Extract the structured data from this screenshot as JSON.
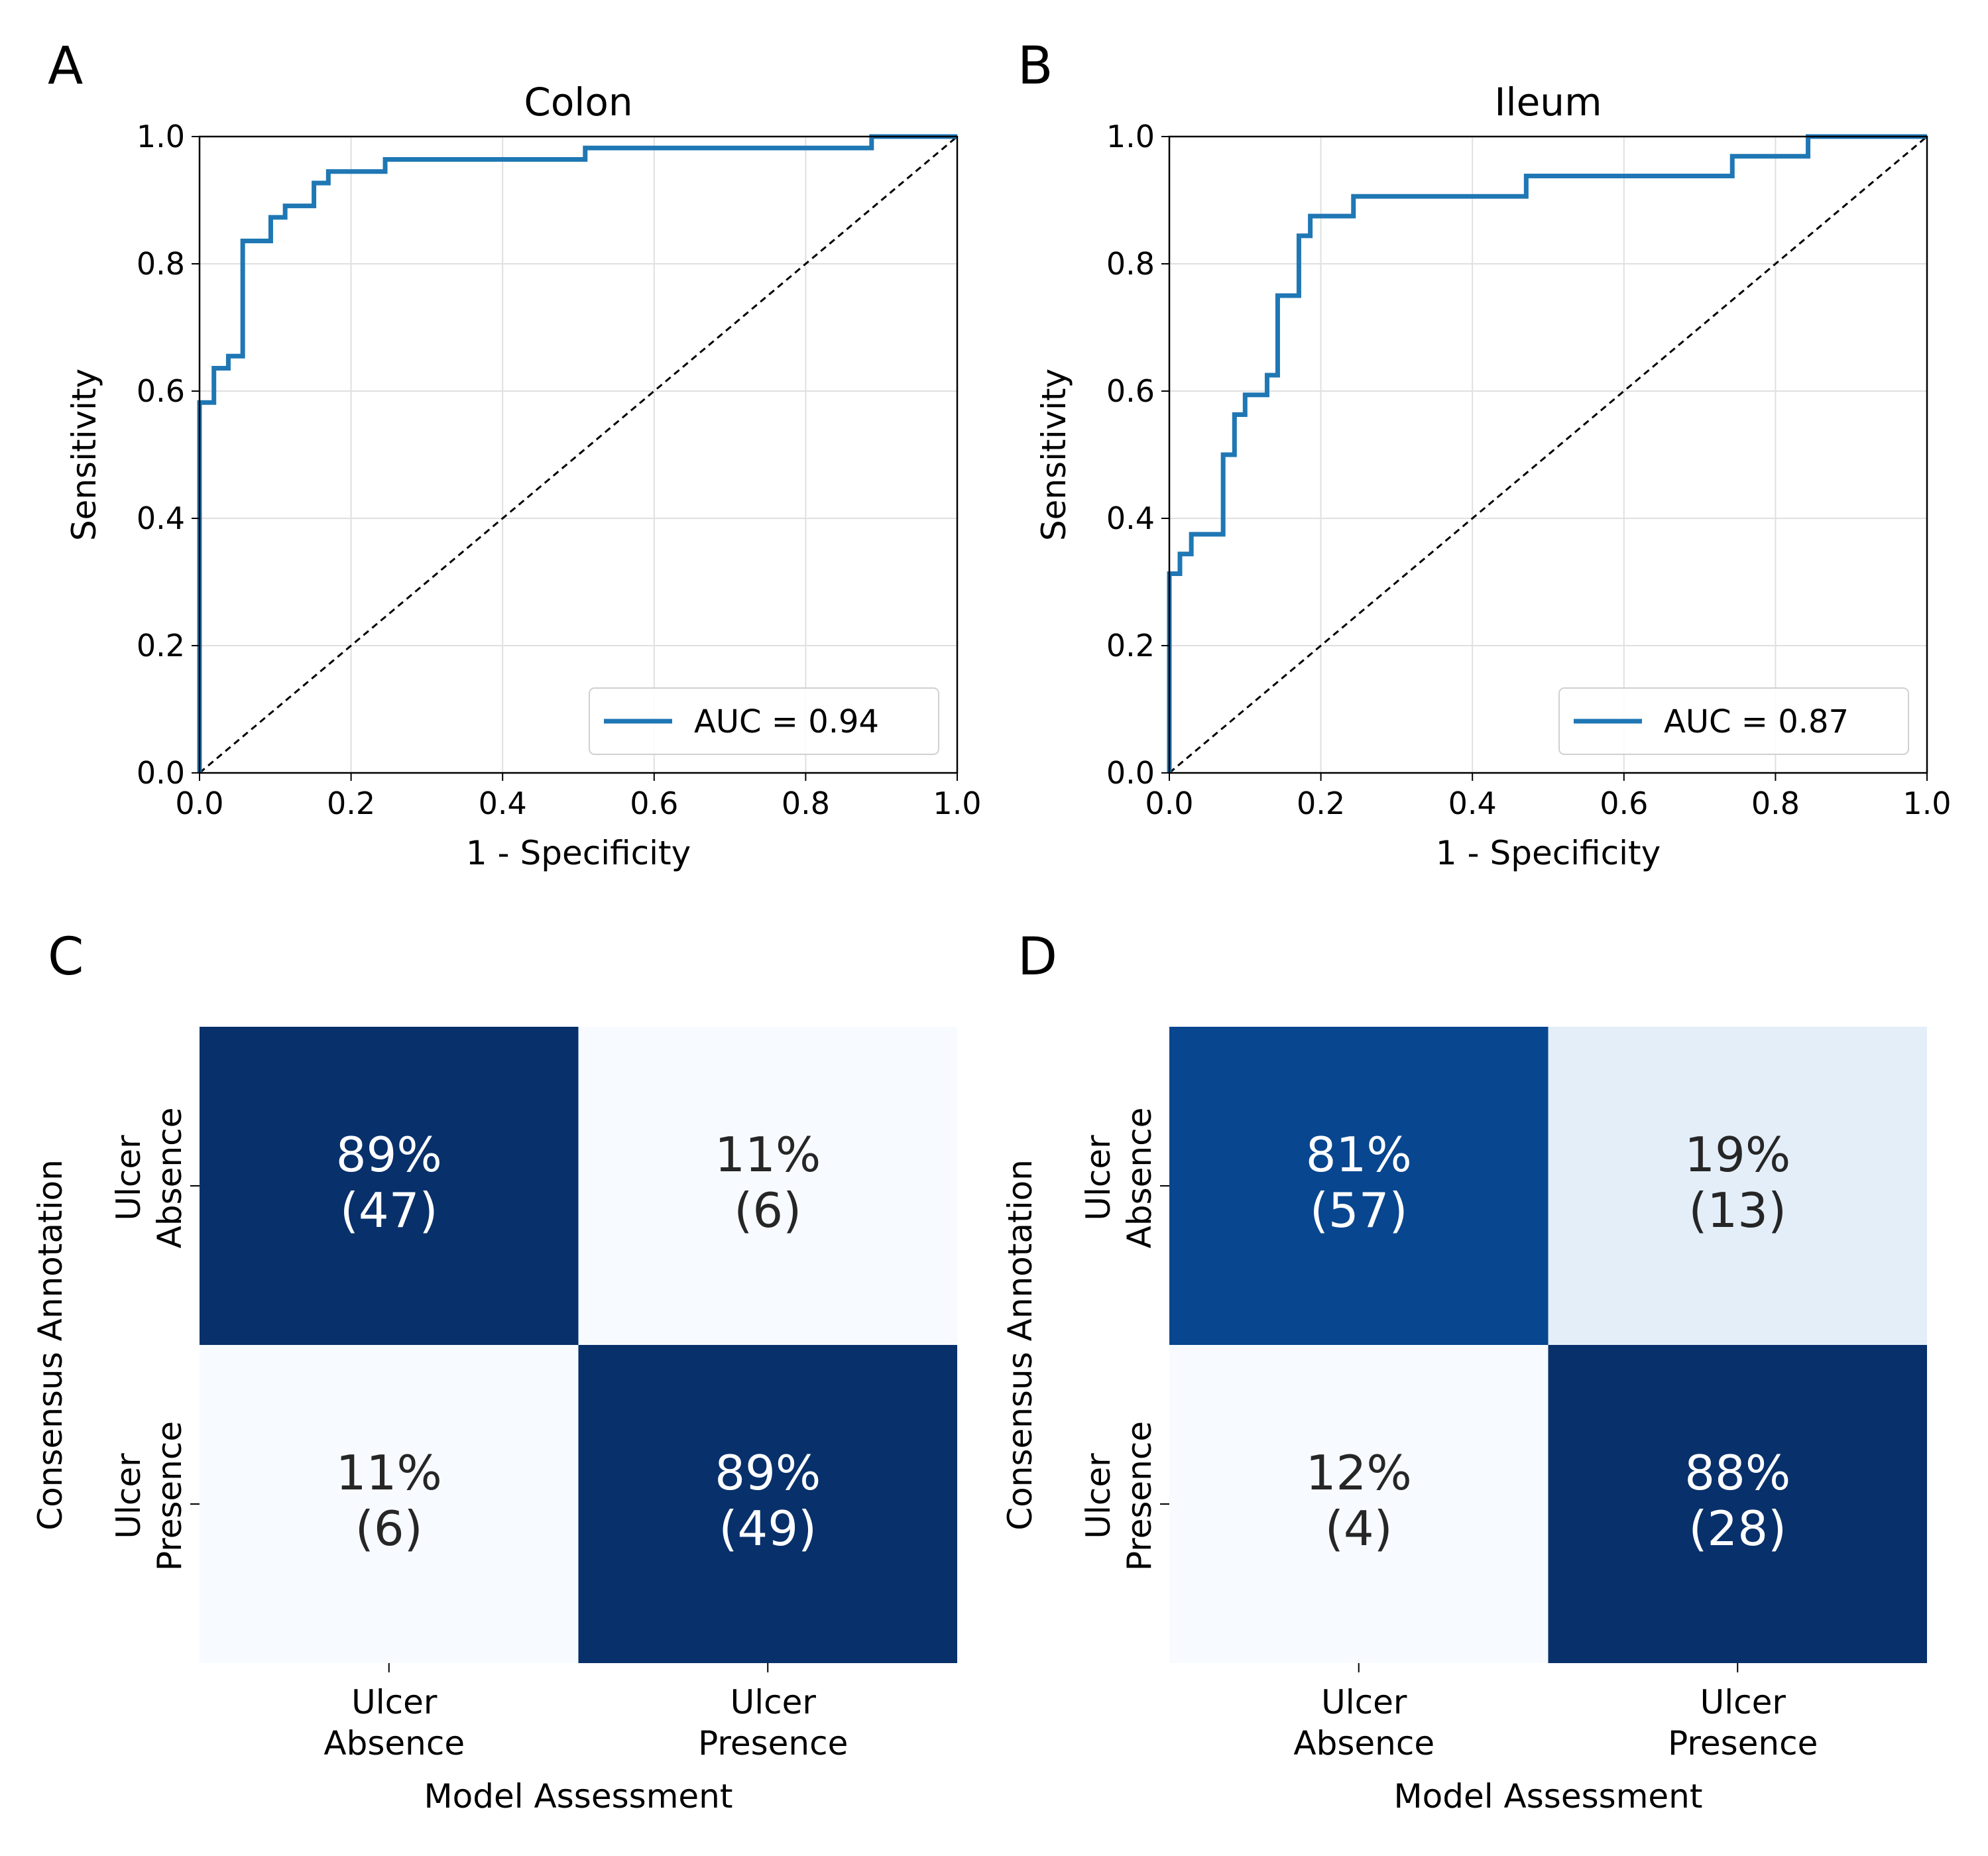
{
  "panels": {
    "A": "A",
    "B": "B",
    "C": "C",
    "D": "D"
  },
  "colors": {
    "roc_line": "#1f77b4",
    "diagonal": "#000000",
    "grid": "#e0e0e0",
    "cm_dark": "#08306b",
    "cm_mid": "#08468f",
    "cm_light": "#e3eef9",
    "cm_lightest": "#f7fbff"
  },
  "chart_data": [
    {
      "type": "line",
      "title": "Colon",
      "xlabel": "1 - Specificity",
      "ylabel": "Sensitivity",
      "xlim": [
        0.0,
        1.0
      ],
      "ylim": [
        0.0,
        1.0
      ],
      "xticks": [
        "0.0",
        "0.2",
        "0.4",
        "0.6",
        "0.8",
        "1.0"
      ],
      "yticks": [
        "0.0",
        "0.2",
        "0.4",
        "0.6",
        "0.8",
        "1.0"
      ],
      "grid": true,
      "legend_position": "lower-right",
      "series": [
        {
          "name": "AUC = 0.94",
          "x": [
            0.0,
            0.0,
            0.0,
            0.019,
            0.019,
            0.038,
            0.038,
            0.057,
            0.057,
            0.094,
            0.094,
            0.113,
            0.113,
            0.151,
            0.151,
            0.17,
            0.17,
            0.245,
            0.245,
            0.509,
            0.509,
            0.887,
            0.887,
            1.0
          ],
          "y": [
            0.0,
            0.0,
            0.582,
            0.582,
            0.636,
            0.636,
            0.655,
            0.655,
            0.836,
            0.836,
            0.873,
            0.873,
            0.891,
            0.891,
            0.927,
            0.927,
            0.945,
            0.945,
            0.964,
            0.964,
            0.982,
            0.982,
            1.0,
            1.0
          ]
        },
        {
          "x": [
            0.0,
            1.0
          ],
          "y": [
            0.0,
            1.0
          ]
        }
      ]
    },
    {
      "type": "line",
      "title": "Ileum",
      "xlabel": "1 - Specificity",
      "ylabel": "Sensitivity",
      "xlim": [
        0.0,
        1.0
      ],
      "ylim": [
        0.0,
        1.0
      ],
      "xticks": [
        "0.0",
        "0.2",
        "0.4",
        "0.6",
        "0.8",
        "1.0"
      ],
      "yticks": [
        "0.0",
        "0.2",
        "0.4",
        "0.6",
        "0.8",
        "1.0"
      ],
      "grid": true,
      "legend_position": "lower-right",
      "series": [
        {
          "name": "AUC = 0.87",
          "x": [
            0.0,
            0.0,
            0.0,
            0.014,
            0.014,
            0.029,
            0.029,
            0.071,
            0.071,
            0.086,
            0.086,
            0.1,
            0.1,
            0.129,
            0.129,
            0.143,
            0.143,
            0.171,
            0.171,
            0.186,
            0.186,
            0.243,
            0.243,
            0.471,
            0.471,
            0.743,
            0.743,
            0.843,
            0.843,
            1.0
          ],
          "y": [
            0.0,
            0.0,
            0.313,
            0.313,
            0.344,
            0.344,
            0.375,
            0.375,
            0.5,
            0.5,
            0.563,
            0.563,
            0.594,
            0.594,
            0.625,
            0.625,
            0.75,
            0.75,
            0.844,
            0.844,
            0.875,
            0.875,
            0.906,
            0.906,
            0.938,
            0.938,
            0.969,
            0.969,
            1.0,
            1.0
          ]
        },
        {
          "x": [
            0.0,
            1.0
          ],
          "y": [
            0.0,
            1.0
          ]
        }
      ]
    },
    {
      "type": "heatmap",
      "xlabel": "Model Assessment",
      "ylabel": "Consensus Annotation",
      "x_categories": [
        [
          "Ulcer",
          "Absence"
        ],
        [
          "Ulcer",
          "Presence"
        ]
      ],
      "y_categories": [
        [
          "Ulcer",
          "Absence"
        ],
        [
          "Ulcer",
          "Presence"
        ]
      ],
      "cells": [
        [
          {
            "percent": "89%",
            "count": "(47)",
            "fraction": 0.89
          },
          {
            "percent": "11%",
            "count": "(6)",
            "fraction": 0.11
          }
        ],
        [
          {
            "percent": "11%",
            "count": "(6)",
            "fraction": 0.11
          },
          {
            "percent": "89%",
            "count": "(49)",
            "fraction": 0.89
          }
        ]
      ]
    },
    {
      "type": "heatmap",
      "xlabel": "Model Assessment",
      "ylabel": "Consensus Annotation",
      "x_categories": [
        [
          "Ulcer",
          "Absence"
        ],
        [
          "Ulcer",
          "Presence"
        ]
      ],
      "y_categories": [
        [
          "Ulcer",
          "Absence"
        ],
        [
          "Ulcer",
          "Presence"
        ]
      ],
      "cells": [
        [
          {
            "percent": "81%",
            "count": "(57)",
            "fraction": 0.81
          },
          {
            "percent": "19%",
            "count": "(13)",
            "fraction": 0.19
          }
        ],
        [
          {
            "percent": "12%",
            "count": "(4)",
            "fraction": 0.12
          },
          {
            "percent": "88%",
            "count": "(28)",
            "fraction": 0.88
          }
        ]
      ]
    }
  ]
}
